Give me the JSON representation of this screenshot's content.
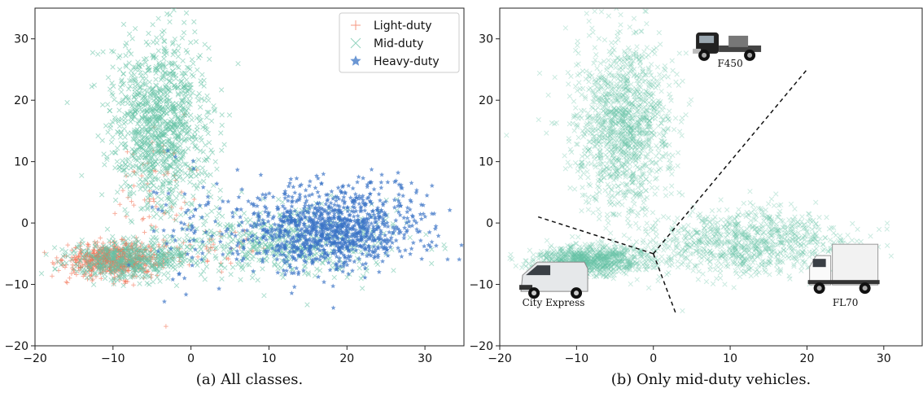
{
  "chart_data": [
    {
      "type": "scatter",
      "caption": "(a) All classes.",
      "xlim": [
        -20,
        35
      ],
      "ylim": [
        -20,
        35
      ],
      "xticks": [
        -20,
        -10,
        0,
        10,
        20,
        30
      ],
      "yticks": [
        -20,
        -10,
        0,
        10,
        20,
        30
      ],
      "grid": false,
      "legend_placement": "top-right",
      "series": [
        {
          "name": "Light-duty",
          "marker": "plus",
          "color": "#f26b4c",
          "clusters": [
            {
              "center": [
                -10,
                -6
              ],
              "spread": [
                3.0,
                1.3
              ],
              "count": 700
            },
            {
              "center": [
                -4,
                5
              ],
              "spread": [
                3.0,
                6.5
              ],
              "count": 70
            },
            {
              "center": [
                3,
                -4
              ],
              "spread": [
                3.0,
                1.6
              ],
              "count": 40
            }
          ]
        },
        {
          "name": "Mid-duty",
          "marker": "x",
          "color": "#66c2a5",
          "clusters": [
            {
              "center": [
                -4,
                16
              ],
              "spread": [
                3.2,
                7.0
              ],
              "count": 1100
            },
            {
              "center": [
                -8,
                -6
              ],
              "spread": [
                4.0,
                1.6
              ],
              "count": 500
            },
            {
              "center": [
                12,
                -3
              ],
              "spread": [
                7.0,
                3.0
              ],
              "count": 500
            }
          ]
        },
        {
          "name": "Heavy-duty",
          "marker": "star",
          "color": "#3a74c6",
          "clusters": [
            {
              "center": [
                18,
                -1
              ],
              "spread": [
                6.0,
                3.3
              ],
              "count": 1100
            },
            {
              "center": [
                -1,
                -1
              ],
              "spread": [
                2.5,
                4.5
              ],
              "count": 60
            }
          ]
        }
      ]
    },
    {
      "type": "scatter",
      "caption": "(b) Only mid-duty vehicles.",
      "xlim": [
        -20,
        35
      ],
      "ylim": [
        -20,
        35
      ],
      "xticks": [
        -20,
        -10,
        0,
        10,
        20,
        30
      ],
      "yticks": [
        -20,
        -10,
        0,
        10,
        20,
        30
      ],
      "grid": false,
      "series": [
        {
          "name": "Mid-duty",
          "marker": "x",
          "color": "#66c2a5",
          "clusters": [
            {
              "center": [
                -4,
                16
              ],
              "spread": [
                3.2,
                7.0
              ],
              "count": 1300
            },
            {
              "center": [
                -8,
                -6
              ],
              "spread": [
                3.6,
                1.2
              ],
              "count": 900
            },
            {
              "center": [
                12,
                -3
              ],
              "spread": [
                6.5,
                2.6
              ],
              "count": 900
            }
          ]
        }
      ],
      "boundaries": [
        {
          "from": [
            0,
            -5
          ],
          "to": [
            20,
            25
          ]
        },
        {
          "from": [
            0,
            -5
          ],
          "to": [
            -15,
            1
          ]
        },
        {
          "from": [
            0,
            -5
          ],
          "to": [
            3,
            -15
          ]
        }
      ],
      "annotations": [
        {
          "label": "F450",
          "x": 10,
          "y": 26,
          "icon": "pickup-truck-icon"
        },
        {
          "label": "City Express",
          "x": -13,
          "y": -13,
          "icon": "cargo-van-icon"
        },
        {
          "label": "FL70",
          "x": 25,
          "y": -13,
          "icon": "box-truck-icon"
        }
      ]
    }
  ]
}
